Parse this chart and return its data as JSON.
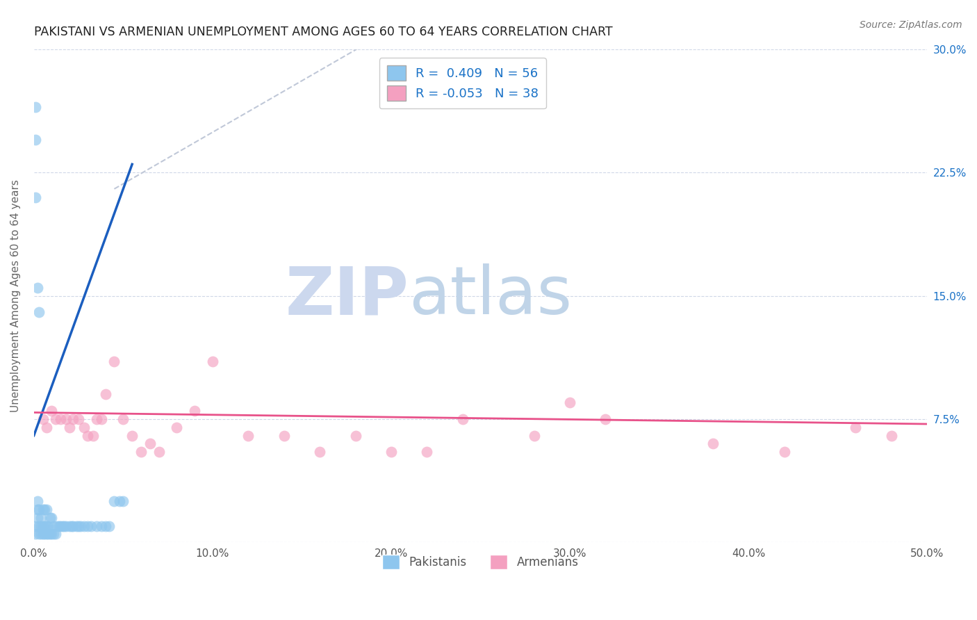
{
  "title": "PAKISTANI VS ARMENIAN UNEMPLOYMENT AMONG AGES 60 TO 64 YEARS CORRELATION CHART",
  "source": "Source: ZipAtlas.com",
  "ylabel": "Unemployment Among Ages 60 to 64 years",
  "xlim": [
    0.0,
    0.5
  ],
  "ylim": [
    0.0,
    0.3
  ],
  "xticks": [
    0.0,
    0.1,
    0.2,
    0.3,
    0.4,
    0.5
  ],
  "yticks": [
    0.0,
    0.075,
    0.15,
    0.225,
    0.3
  ],
  "xticklabels": [
    "0.0%",
    "10.0%",
    "20.0%",
    "30.0%",
    "40.0%",
    "50.0%"
  ],
  "yticklabels_right": [
    "",
    "7.5%",
    "15.0%",
    "22.5%",
    "30.0%"
  ],
  "pakistani_color": "#8EC6EE",
  "armenian_color": "#F4A0C0",
  "pakistani_line_color": "#1B5EBF",
  "armenian_line_color": "#E8528A",
  "diagonal_color": "#C0C8D8",
  "r_pakistani": 0.409,
  "n_pakistani": 56,
  "r_armenian": -0.053,
  "n_armenian": 38,
  "background_color": "#ffffff",
  "grid_color": "#d0d8e8",
  "pakistanis_x": [
    0.001,
    0.001,
    0.002,
    0.002,
    0.002,
    0.003,
    0.003,
    0.003,
    0.004,
    0.004,
    0.004,
    0.005,
    0.005,
    0.005,
    0.006,
    0.006,
    0.006,
    0.007,
    0.007,
    0.007,
    0.008,
    0.008,
    0.009,
    0.009,
    0.01,
    0.01,
    0.011,
    0.011,
    0.012,
    0.013,
    0.014,
    0.015,
    0.016,
    0.017,
    0.018,
    0.02,
    0.021,
    0.022,
    0.024,
    0.025,
    0.026,
    0.028,
    0.03,
    0.032,
    0.035,
    0.038,
    0.04,
    0.042,
    0.045,
    0.048,
    0.05,
    0.001,
    0.001,
    0.001,
    0.002,
    0.003
  ],
  "pakistanis_y": [
    0.005,
    0.01,
    0.015,
    0.02,
    0.025,
    0.005,
    0.01,
    0.02,
    0.005,
    0.01,
    0.015,
    0.005,
    0.01,
    0.02,
    0.005,
    0.01,
    0.02,
    0.005,
    0.01,
    0.02,
    0.005,
    0.01,
    0.005,
    0.015,
    0.005,
    0.015,
    0.005,
    0.01,
    0.005,
    0.01,
    0.01,
    0.01,
    0.01,
    0.01,
    0.01,
    0.01,
    0.01,
    0.01,
    0.01,
    0.01,
    0.01,
    0.01,
    0.01,
    0.01,
    0.01,
    0.01,
    0.01,
    0.01,
    0.025,
    0.025,
    0.025,
    0.245,
    0.265,
    0.21,
    0.155,
    0.14
  ],
  "armenians_x": [
    0.005,
    0.007,
    0.01,
    0.012,
    0.015,
    0.018,
    0.02,
    0.022,
    0.025,
    0.028,
    0.03,
    0.033,
    0.035,
    0.038,
    0.04,
    0.045,
    0.05,
    0.055,
    0.06,
    0.065,
    0.07,
    0.08,
    0.09,
    0.1,
    0.12,
    0.14,
    0.16,
    0.18,
    0.2,
    0.22,
    0.24,
    0.28,
    0.3,
    0.32,
    0.38,
    0.42,
    0.46,
    0.48
  ],
  "armenians_y": [
    0.075,
    0.07,
    0.08,
    0.075,
    0.075,
    0.075,
    0.07,
    0.075,
    0.075,
    0.07,
    0.065,
    0.065,
    0.075,
    0.075,
    0.09,
    0.11,
    0.075,
    0.065,
    0.055,
    0.06,
    0.055,
    0.07,
    0.08,
    0.11,
    0.065,
    0.065,
    0.055,
    0.065,
    0.055,
    0.055,
    0.075,
    0.065,
    0.085,
    0.075,
    0.06,
    0.055,
    0.07,
    0.065
  ],
  "watermark_zip": "ZIP",
  "watermark_atlas": "atlas",
  "watermark_color": "#d8e4f0",
  "legend_color": "#1a72c7"
}
